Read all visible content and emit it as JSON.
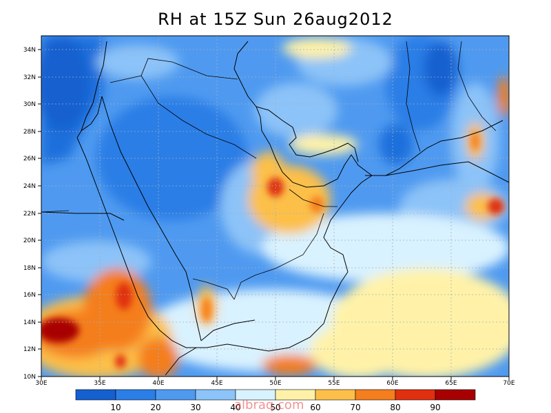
{
  "title": "RH at 15Z Sun 26aug2012",
  "watermark": "albraq.com",
  "map": {
    "lon_range": [
      30,
      70
    ],
    "lat_range": [
      10,
      35
    ],
    "lon_ticks": [
      "30E",
      "35E",
      "40E",
      "45E",
      "50E",
      "55E",
      "60E",
      "65E",
      "70E"
    ],
    "lat_ticks": [
      "10N",
      "12N",
      "14N",
      "16N",
      "18N",
      "20N",
      "22N",
      "24N",
      "26N",
      "28N",
      "30N",
      "32N",
      "34N"
    ]
  },
  "colorbar": {
    "labels": [
      "10",
      "20",
      "30",
      "40",
      "50",
      "60",
      "70",
      "80",
      "90"
    ],
    "colors": [
      "#1560d0",
      "#2a7ee6",
      "#4f9af0",
      "#8cc3f8",
      "#d9f2ff",
      "#fff2a8",
      "#fcc04a",
      "#f57e1e",
      "#e03010",
      "#a80000"
    ]
  }
}
